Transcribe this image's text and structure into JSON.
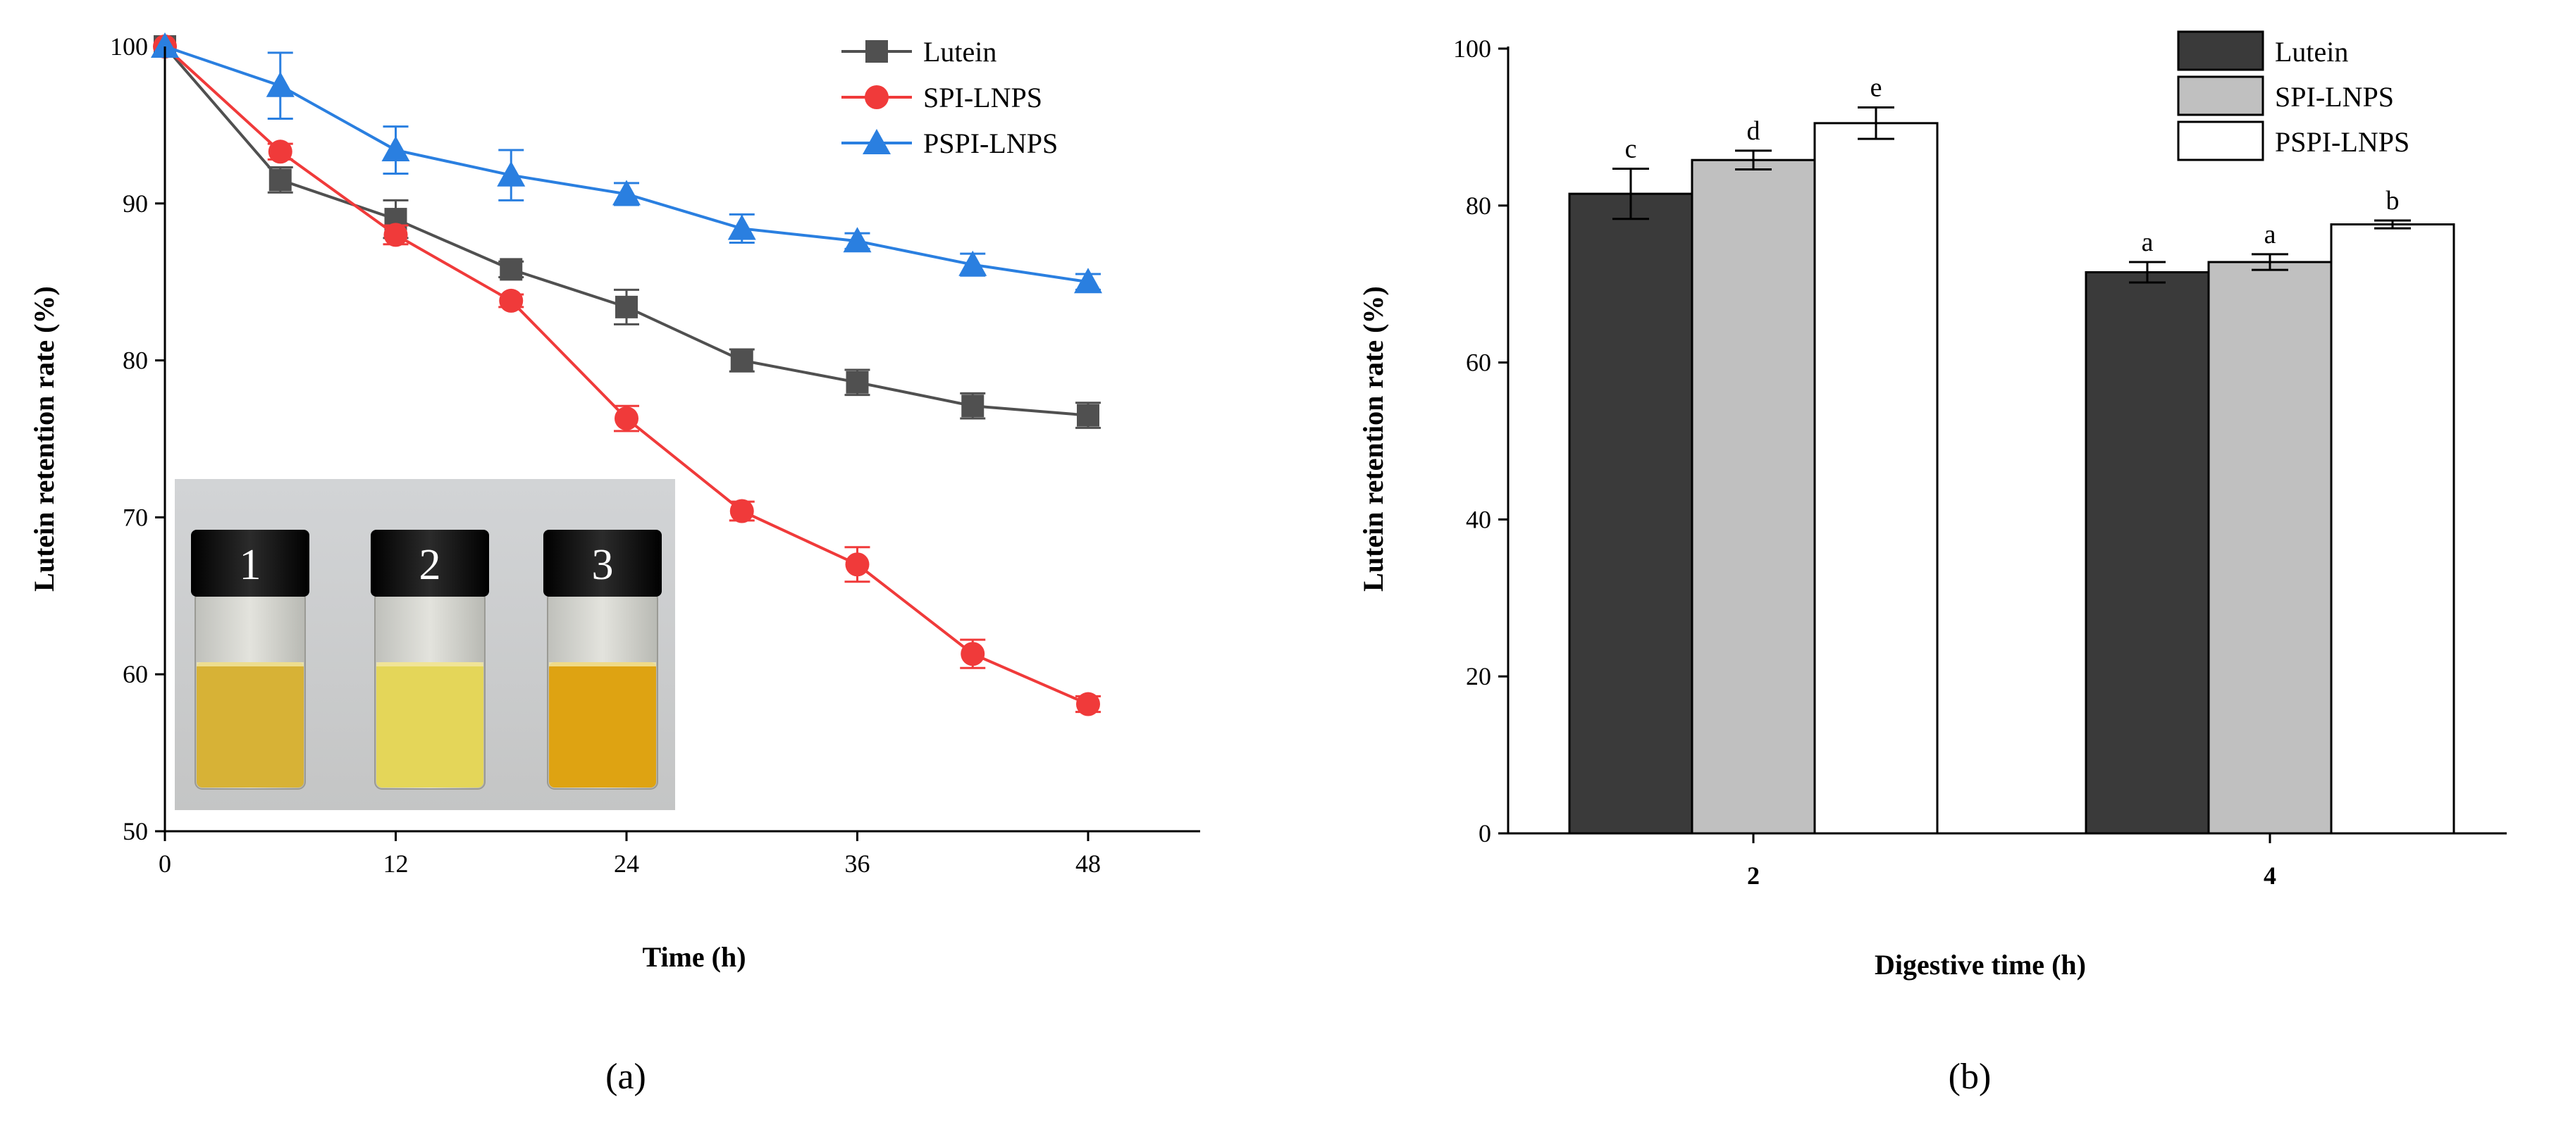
{
  "chart_data": [
    {
      "panel": "(a)",
      "type": "line",
      "xlabel": "Time (h)",
      "ylabel": "Lutein retention rate (%)",
      "xlim": [
        0,
        54
      ],
      "ylim": [
        50,
        100
      ],
      "xticks": [
        0,
        12,
        24,
        36,
        48
      ],
      "yticks": [
        50,
        60,
        70,
        80,
        90,
        100
      ],
      "x": [
        0,
        6,
        12,
        18,
        24,
        30,
        36,
        42,
        48
      ],
      "legend_position": "top-right",
      "series": [
        {
          "name": "Lutein",
          "color": "#505050",
          "marker": "square",
          "values": [
            100,
            91.5,
            89,
            85.8,
            83.4,
            80,
            78.6,
            77.1,
            76.5
          ],
          "errors": [
            0,
            0.8,
            1.2,
            0.5,
            1.1,
            0.7,
            0.8,
            0.8,
            0.8
          ]
        },
        {
          "name": "SPI-LNPS",
          "color": "#f03a3a",
          "marker": "circle",
          "values": [
            100,
            93.3,
            88,
            83.8,
            76.3,
            70.4,
            67,
            61.3,
            58.1
          ],
          "errors": [
            0,
            0.5,
            0.6,
            0.4,
            0.8,
            0.6,
            1.1,
            0.9,
            0.5
          ]
        },
        {
          "name": "PSPI-LNPS",
          "color": "#2a7fe0",
          "marker": "triangle",
          "values": [
            100,
            97.5,
            93.4,
            91.8,
            90.6,
            88.4,
            87.6,
            86.1,
            85
          ],
          "errors": [
            0,
            2.1,
            1.5,
            1.6,
            0.7,
            0.9,
            0.5,
            0.7,
            0.5
          ]
        }
      ],
      "inset": {
        "description_labels": [
          "1",
          "2",
          "3"
        ],
        "liquid_colors": [
          "#d7b236",
          "#e4d659",
          "#dea312"
        ]
      }
    },
    {
      "panel": "(b)",
      "type": "bar",
      "xlabel": "Digestive time (h)",
      "ylabel": "Lutein retention rate (%)",
      "ylim": [
        0,
        100
      ],
      "yticks": [
        0,
        20,
        40,
        60,
        80,
        100
      ],
      "categories": [
        "2",
        "4"
      ],
      "legend_position": "top-right",
      "series": [
        {
          "name": "Lutein",
          "color": "#3a3a3a",
          "values": [
            81.5,
            71.5
          ],
          "errors": [
            3.2,
            1.3
          ],
          "labels": [
            "c",
            "a"
          ]
        },
        {
          "name": "SPI-LNPS",
          "color": "#c0c0c0",
          "values": [
            85.8,
            72.8
          ],
          "errors": [
            1.2,
            1.0
          ],
          "labels": [
            "d",
            "a"
          ]
        },
        {
          "name": "PSPI-LNPS",
          "color": "#ffffff",
          "values": [
            90.5,
            77.6
          ],
          "errors": [
            2.0,
            0.5
          ],
          "labels": [
            "e",
            "b"
          ]
        }
      ]
    }
  ]
}
